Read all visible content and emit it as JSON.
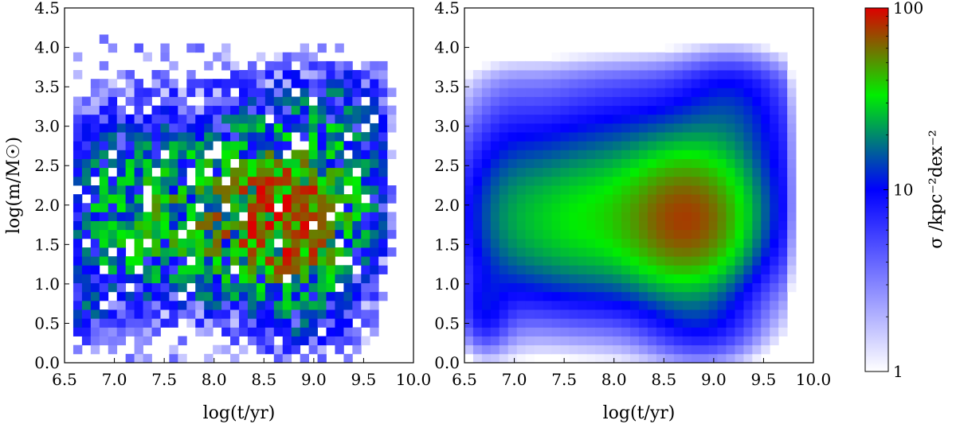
{
  "chart_data": [
    {
      "type": "heatmap",
      "panel": "left",
      "style": "binned 2D histogram",
      "xlabel": "log(t/yr)",
      "ylabel": "log(m/M☉)",
      "xlim": [
        6.5,
        10.0
      ],
      "ylim": [
        0.0,
        4.5
      ],
      "xticks": [
        "6.5",
        "7.0",
        "7.5",
        "8.0",
        "8.5",
        "9.0",
        "9.5",
        "10.0"
      ],
      "yticks": [
        "0.0",
        "0.5",
        "1.0",
        "1.5",
        "2.0",
        "2.5",
        "3.0",
        "3.5",
        "4.0",
        "4.5"
      ],
      "bin_size": [
        0.0875,
        0.1125
      ],
      "color_scale": "log",
      "value_range": [
        1,
        100
      ],
      "density_peak": {
        "x": 8.7,
        "y": 1.8,
        "value": 80
      },
      "nonzero_extent": {
        "x": [
          6.55,
          9.8
        ],
        "y": [
          0.0,
          4.4
        ]
      }
    },
    {
      "type": "heatmap",
      "panel": "right",
      "style": "smoothed density",
      "xlabel": "log(t/yr)",
      "ylabel": "",
      "xlim": [
        6.5,
        10.0
      ],
      "ylim": [
        0.0,
        4.5
      ],
      "xticks": [
        "6.5",
        "7.0",
        "7.5",
        "8.0",
        "8.5",
        "9.0",
        "9.5",
        "10.0"
      ],
      "yticks": [
        "0.0",
        "0.5",
        "1.0",
        "1.5",
        "2.0",
        "2.5",
        "3.0",
        "3.5",
        "4.0",
        "4.5"
      ],
      "bin_size": [
        0.0875,
        0.1125
      ],
      "color_scale": "log",
      "value_range": [
        1,
        100
      ],
      "density_peak": {
        "x": 8.75,
        "y": 1.8,
        "value": 60
      },
      "nonzero_extent": {
        "x": [
          6.5,
          9.8
        ],
        "y": [
          0.0,
          4.2
        ]
      }
    }
  ],
  "colorbar": {
    "label": "σ /kpc⁻²dex⁻²",
    "scale": "log",
    "ticks": [
      "1",
      "10",
      "100"
    ],
    "tick_values": [
      1,
      10,
      100
    ],
    "colors": [
      "#ffffff",
      "#0000ff",
      "#00ee00",
      "#dd0000"
    ]
  }
}
